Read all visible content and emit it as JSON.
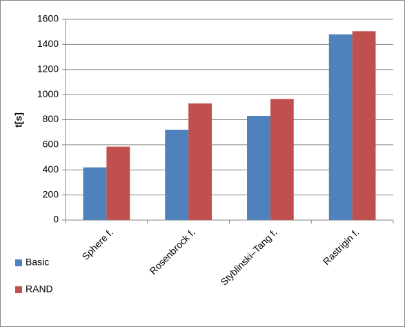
{
  "chart_data": {
    "type": "bar",
    "y_label": "t[s]",
    "categories": [
      "Sphere f.",
      "Rosenbrock f.",
      "Styblinski–Tang f.",
      "Rastrigin f."
    ],
    "series": [
      {
        "name": "Basic",
        "color": "#4f81bd",
        "values": [
          420,
          720,
          830,
          1480
        ]
      },
      {
        "name": "RAND",
        "color": "#c0504d",
        "values": [
          585,
          930,
          965,
          1505
        ]
      }
    ],
    "ylim": [
      0,
      1600
    ],
    "yticks": [
      0,
      200,
      400,
      600,
      800,
      1000,
      1200,
      1400,
      1600
    ],
    "grid": true,
    "legend": "left"
  }
}
